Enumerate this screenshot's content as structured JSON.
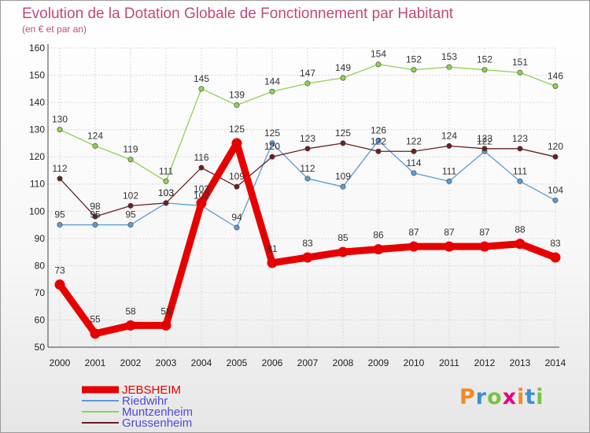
{
  "chart_data": {
    "type": "line",
    "title": "Evolution de la Dotation Globale de Fonctionnement par Habitant",
    "subtitle": "(en € et par an)",
    "x": [
      "2000",
      "2001",
      "2002",
      "2003",
      "2004",
      "2005",
      "2006",
      "2007",
      "2008",
      "2009",
      "2010",
      "2011",
      "2012",
      "2013",
      "2014"
    ],
    "ylim": [
      50,
      160
    ],
    "yticks": [
      50,
      60,
      70,
      80,
      90,
      100,
      110,
      120,
      130,
      140,
      150,
      160
    ],
    "grid": true,
    "legend_position": "bottom-left",
    "series": [
      {
        "name": "JEBSHEIM",
        "color": "#e60000",
        "values": [
          73,
          55,
          58,
          58,
          103,
          125,
          81,
          83,
          85,
          86,
          87,
          87,
          87,
          88,
          83
        ]
      },
      {
        "name": "Riedwihr",
        "color": "#5b9bd5",
        "values": [
          95,
          95,
          95,
          103,
          102,
          94,
          125,
          112,
          109,
          126,
          114,
          111,
          122,
          111,
          104
        ]
      },
      {
        "name": "Muntzenheim",
        "color": "#8fd14f",
        "values": [
          130,
          124,
          119,
          111,
          145,
          139,
          144,
          147,
          149,
          154,
          152,
          153,
          152,
          151,
          146
        ]
      },
      {
        "name": "Grussenheim",
        "color": "#6b1f1f",
        "values": [
          112,
          98,
          102,
          103,
          116,
          109,
          120,
          123,
          125,
          122,
          122,
          124,
          123,
          123,
          120
        ]
      }
    ]
  },
  "logo": {
    "text": "Proxiti",
    "colors": [
      "#f08a24",
      "#3a8fd0",
      "#7ac143",
      "#e6007e",
      "#f08a24",
      "#3a8fd0",
      "#7ac143"
    ]
  }
}
